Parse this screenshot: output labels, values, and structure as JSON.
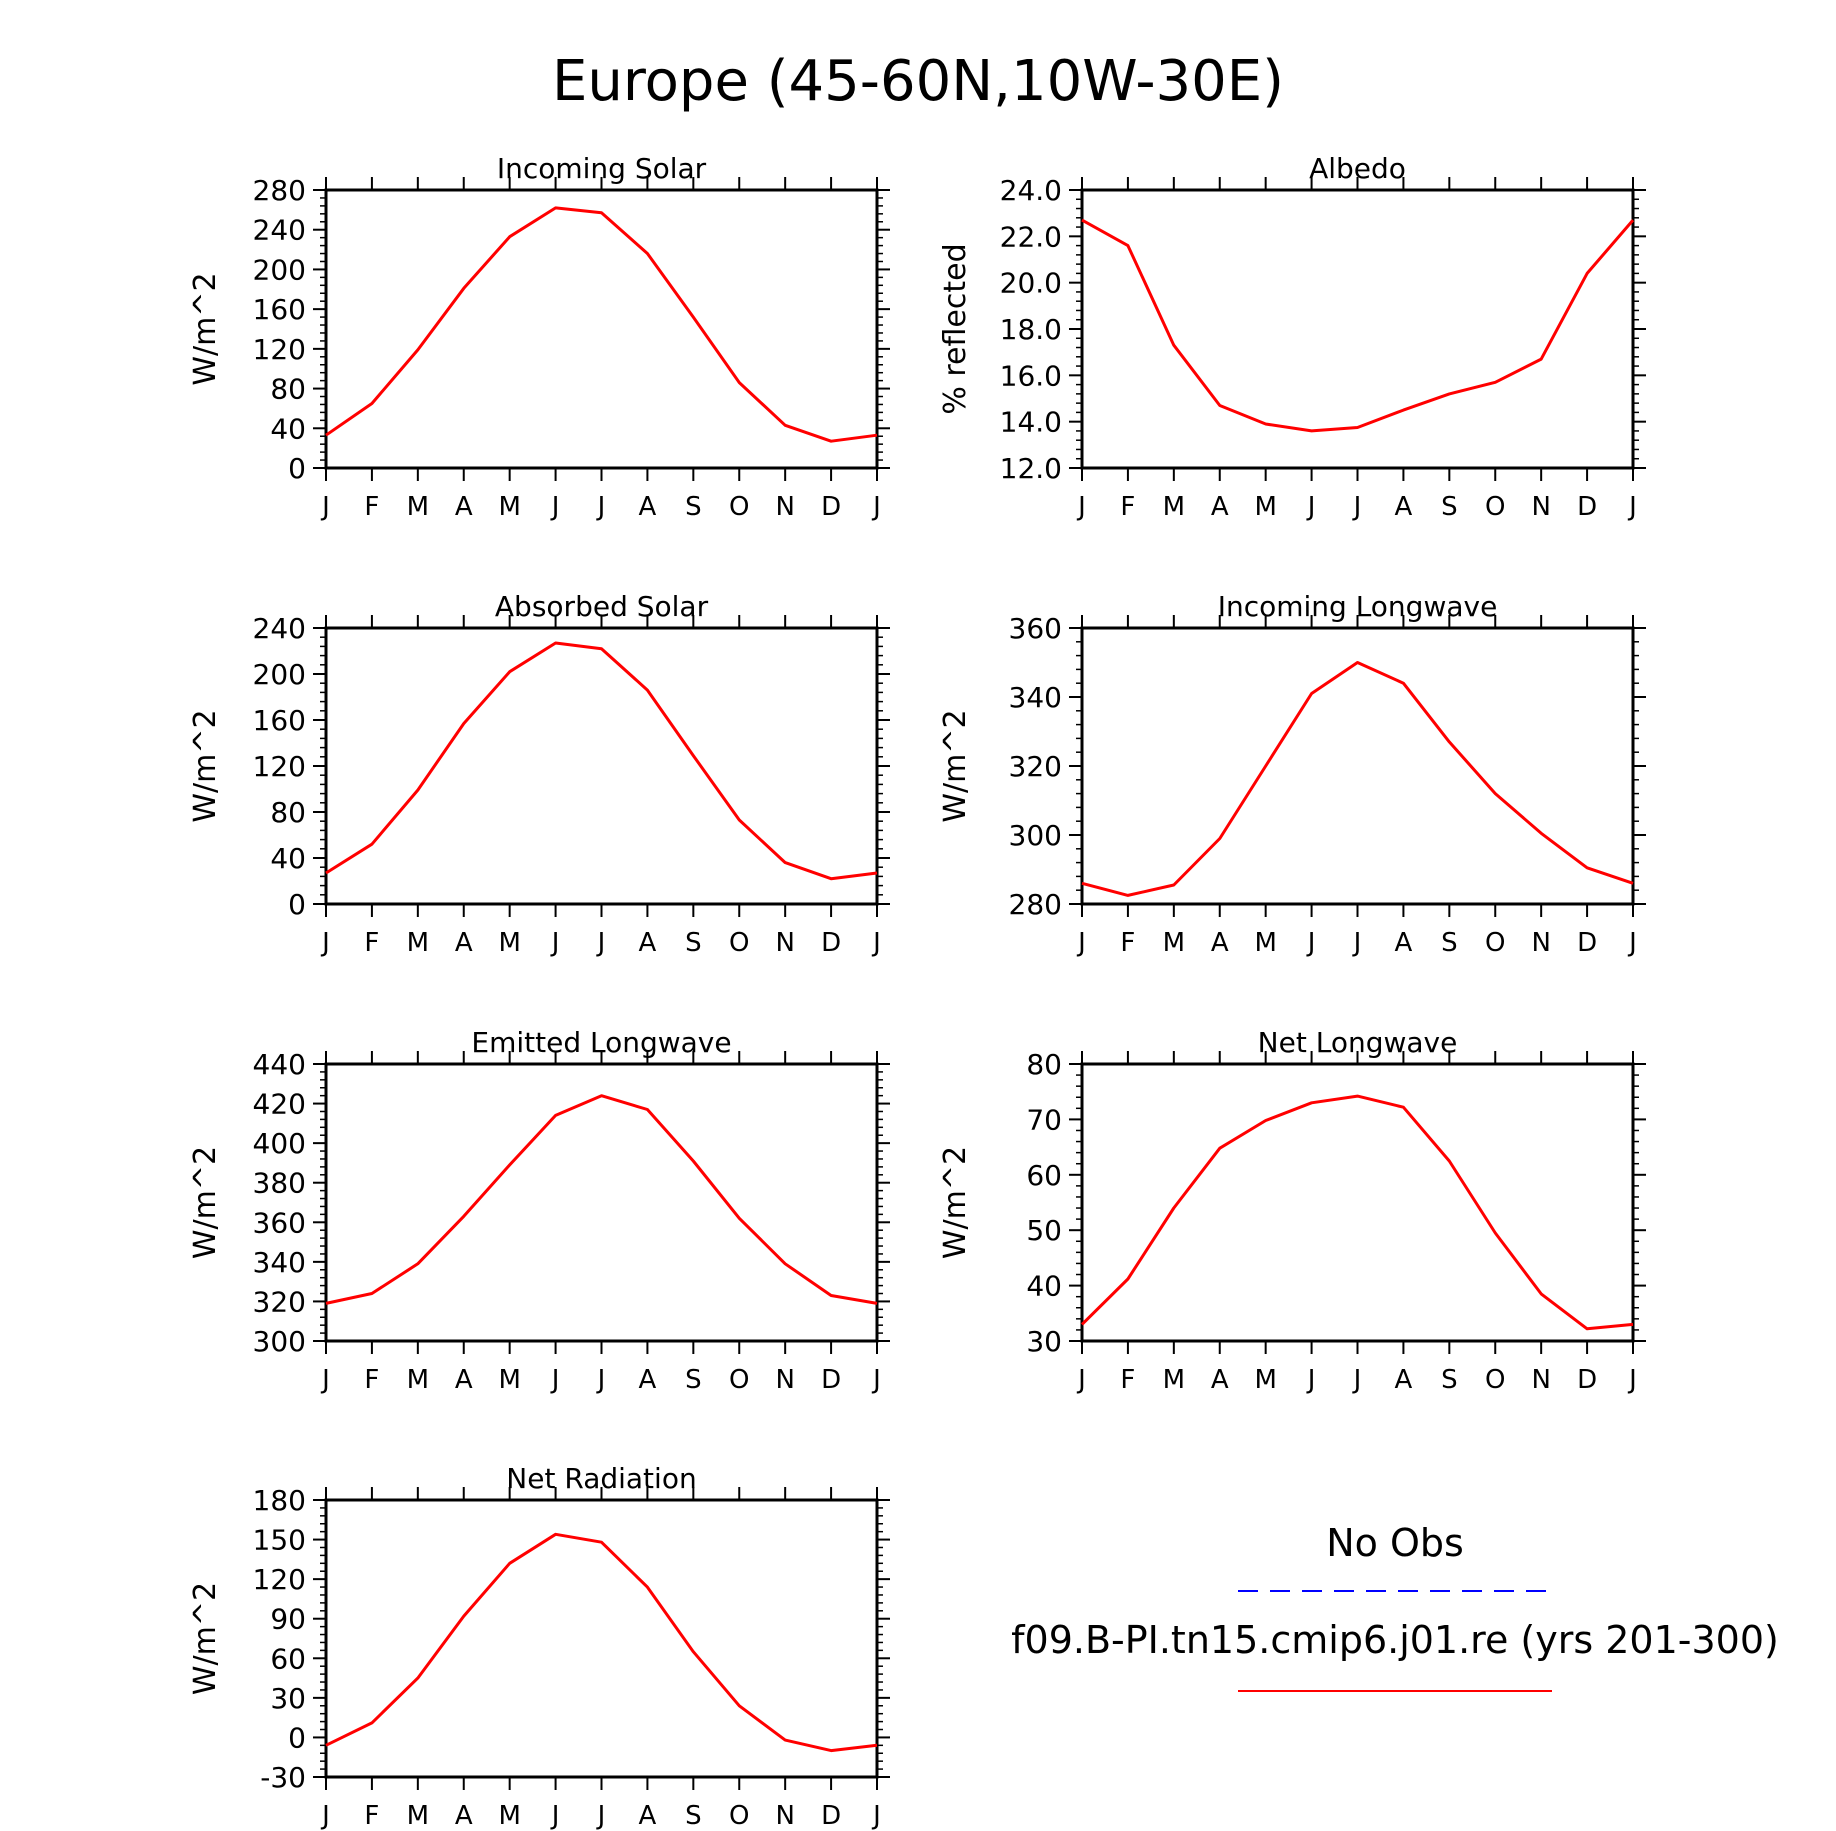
{
  "page_title": "Europe (45-60N,10W-30E)",
  "month_labels": [
    "J",
    "F",
    "M",
    "A",
    "M",
    "J",
    "J",
    "A",
    "S",
    "O",
    "N",
    "D",
    "J"
  ],
  "legend": {
    "obs_label": "No Obs",
    "model_label": "f09.B-PI.tn15.cmip6.j01.re (yrs 201-300)",
    "obs_color": "#0000ff",
    "model_color": "#ff0000"
  },
  "chart_data": [
    {
      "type": "line",
      "title": "Incoming Solar",
      "ylabel": "W/m^2",
      "ylim": [
        0,
        280
      ],
      "yticks": [
        0,
        40,
        80,
        120,
        160,
        200,
        240,
        280
      ],
      "ytick_labels": [
        "0",
        "40",
        "80",
        "120",
        "160",
        "200",
        "240",
        "280"
      ],
      "series": [
        {
          "color": "#ff0000",
          "values": [
            33,
            65,
            119,
            181,
            233,
            262,
            257,
            216,
            152,
            86,
            43,
            27,
            33
          ]
        }
      ]
    },
    {
      "type": "line",
      "title": "Albedo",
      "ylabel": "% reflected",
      "ylim": [
        12,
        24
      ],
      "yticks": [
        12,
        14,
        16,
        18,
        20,
        22,
        24
      ],
      "ytick_labels": [
        "12.0",
        "14.0",
        "16.0",
        "18.0",
        "20.0",
        "22.0",
        "24.0"
      ],
      "series": [
        {
          "color": "#ff0000",
          "values": [
            22.7,
            21.6,
            17.3,
            14.7,
            13.9,
            13.6,
            13.75,
            14.5,
            15.2,
            15.7,
            16.7,
            20.4,
            22.7
          ]
        }
      ]
    },
    {
      "type": "line",
      "title": "Absorbed Solar",
      "ylabel": "W/m^2",
      "ylim": [
        0,
        240
      ],
      "yticks": [
        0,
        40,
        80,
        120,
        160,
        200,
        240
      ],
      "ytick_labels": [
        "0",
        "40",
        "80",
        "120",
        "160",
        "200",
        "240"
      ],
      "series": [
        {
          "color": "#ff0000",
          "values": [
            27,
            52,
            99,
            157,
            202,
            227,
            222,
            186,
            129,
            73,
            36,
            22,
            27
          ]
        }
      ]
    },
    {
      "type": "line",
      "title": "Incoming Longwave",
      "ylabel": "W/m^2",
      "ylim": [
        280,
        360
      ],
      "yticks": [
        280,
        300,
        320,
        340,
        360
      ],
      "ytick_labels": [
        "280",
        "300",
        "320",
        "340",
        "360"
      ],
      "series": [
        {
          "color": "#ff0000",
          "values": [
            286,
            282.5,
            285.5,
            299,
            320,
            341,
            350,
            344,
            327,
            312,
            300.5,
            290.5,
            286
          ]
        }
      ]
    },
    {
      "type": "line",
      "title": "Emitted Longwave",
      "ylabel": "W/m^2",
      "ylim": [
        300,
        440
      ],
      "yticks": [
        300,
        320,
        340,
        360,
        380,
        400,
        420,
        440
      ],
      "ytick_labels": [
        "300",
        "320",
        "340",
        "360",
        "380",
        "400",
        "420",
        "440"
      ],
      "series": [
        {
          "color": "#ff0000",
          "values": [
            319,
            324,
            339,
            363,
            389,
            414,
            424,
            417,
            391,
            362,
            339,
            323,
            319
          ]
        }
      ]
    },
    {
      "type": "line",
      "title": "Net Longwave",
      "ylabel": "W/m^2",
      "ylim": [
        30,
        80
      ],
      "yticks": [
        30,
        40,
        50,
        60,
        70,
        80
      ],
      "ytick_labels": [
        "30",
        "40",
        "50",
        "60",
        "70",
        "80"
      ],
      "series": [
        {
          "color": "#ff0000",
          "values": [
            33,
            41.2,
            54,
            64.8,
            69.8,
            73,
            74.2,
            72.2,
            62.5,
            49.5,
            38.5,
            32.2,
            33
          ]
        }
      ]
    },
    {
      "type": "line",
      "title": "Net Radiation",
      "ylabel": "W/m^2",
      "ylim": [
        -30,
        180
      ],
      "yticks": [
        -30,
        0,
        30,
        60,
        90,
        120,
        150,
        180
      ],
      "ytick_labels": [
        "-30",
        "0",
        "30",
        "60",
        "90",
        "120",
        "150",
        "180"
      ],
      "series": [
        {
          "color": "#ff0000",
          "values": [
            -6,
            11,
            45,
            92,
            132,
            154,
            148,
            114,
            65,
            24,
            -2,
            -10,
            -6
          ]
        }
      ]
    }
  ]
}
